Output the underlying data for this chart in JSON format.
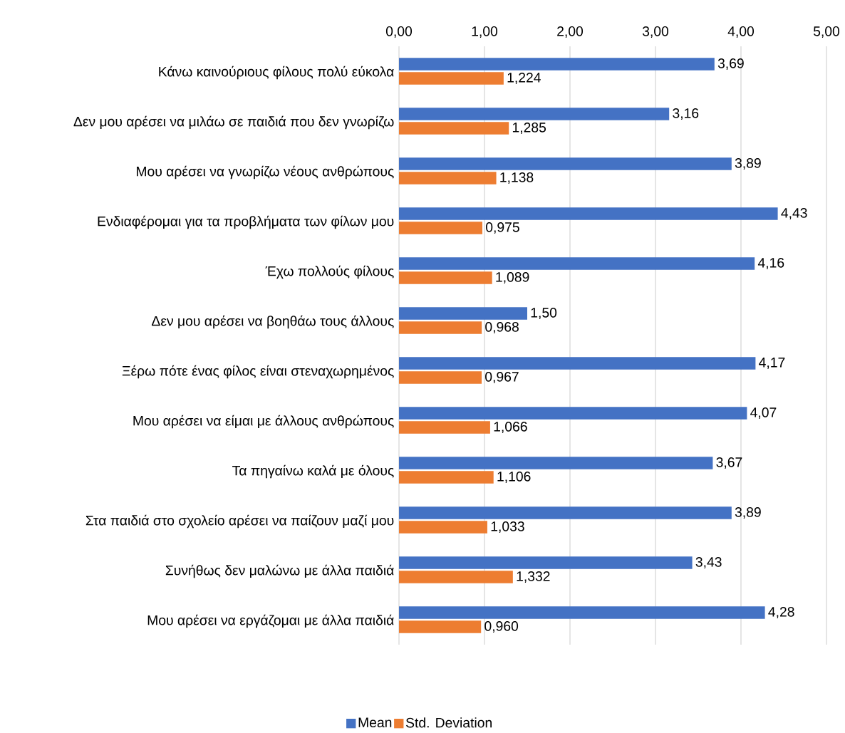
{
  "chart_data": {
    "type": "bar",
    "orientation": "horizontal",
    "categories": [
      "Κάνω καινούριους φίλους πολύ εύκολα",
      "Δεν μου αρέσει να μιλάω σε παιδιά που δεν γνωρίζω",
      "Μου αρέσει να γνωρίζω νέους ανθρώπους",
      "Ενδιαφέρομαι για τα προβλήματα των φίλων μου",
      "Έχω πολλούς φίλους",
      "Δεν μου αρέσει να βοηθάω τους άλλους",
      "Ξέρω πότε ένας φίλος είναι στεναχωρημένος",
      "Μου αρέσει να είμαι με άλλους ανθρώπους",
      "Τα πηγαίνω καλά με όλους",
      "Στα παιδιά στο σχολείο αρέσει να παίζουν μαζί μου",
      "Συνήθως δεν μαλώνω με άλλα παιδιά",
      "Μου αρέσει να εργάζομαι με άλλα παιδιά"
    ],
    "series": [
      {
        "name": "Mean",
        "color": "#4472c4",
        "values": [
          3.69,
          3.16,
          3.89,
          4.43,
          4.16,
          1.5,
          4.17,
          4.07,
          3.67,
          3.89,
          3.43,
          4.28
        ],
        "value_labels": [
          "3,69",
          "3,16",
          "3,89",
          "4,43",
          "4,16",
          "1,50",
          "4,17",
          "4,07",
          "3,67",
          "3,89",
          "3,43",
          "4,28"
        ]
      },
      {
        "name": "Std. Deviation",
        "color": "#ed7d31",
        "values": [
          1.224,
          1.285,
          1.138,
          0.975,
          1.089,
          0.968,
          0.967,
          1.066,
          1.106,
          1.033,
          1.332,
          0.96
        ],
        "value_labels": [
          "1,224",
          "1,285",
          "1,138",
          "0,975",
          "1,089",
          "0,968",
          "0,967",
          "1,066",
          "1,106",
          "1,033",
          "1,332",
          "0,960"
        ]
      }
    ],
    "xlim": [
      0,
      5
    ],
    "xticks": [
      {
        "value": 0,
        "label": "0,00"
      },
      {
        "value": 1,
        "label": "1,00"
      },
      {
        "value": 2,
        "label": "2,00"
      },
      {
        "value": 3,
        "label": "3,00"
      },
      {
        "value": 4,
        "label": "4,00"
      },
      {
        "value": 5,
        "label": "5,00"
      }
    ],
    "grid": "x",
    "legend": "bottom"
  }
}
